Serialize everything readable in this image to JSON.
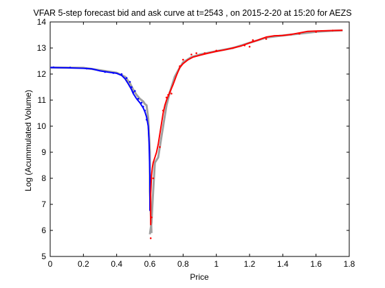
{
  "chart_data": {
    "type": "line",
    "title": "VFAR 5-step forecast bid and ask curve at t=2543 , on 2015-2-20 at 15:20 for AEZS",
    "xlabel": "Price",
    "ylabel": "Log (Acummulated Volume)",
    "xlim": [
      0,
      1.8
    ],
    "ylim": [
      5,
      14
    ],
    "xticks": [
      "0",
      "0.2",
      "0.4",
      "0.6",
      "0.8",
      "1",
      "1.2",
      "1.4",
      "1.6",
      "1.8"
    ],
    "yticks": [
      "5",
      "6",
      "7",
      "8",
      "9",
      "10",
      "11",
      "12",
      "13",
      "14"
    ],
    "grid": false,
    "series": [
      {
        "role": "bid-actual",
        "color": "#a0a0a0",
        "style": "line",
        "x": [
          0.0,
          0.2,
          0.3,
          0.4,
          0.45,
          0.48,
          0.5,
          0.52,
          0.54,
          0.56,
          0.57,
          0.58,
          0.59,
          0.6,
          0.6,
          0.61
        ],
        "y": [
          12.25,
          12.24,
          12.15,
          12.05,
          11.9,
          11.65,
          11.4,
          11.2,
          11.05,
          10.95,
          10.85,
          10.8,
          10.3,
          9.0,
          7.5,
          5.9
        ]
      },
      {
        "role": "bid-forecast",
        "color": "#0000ff",
        "style": "line",
        "x": [
          0.0,
          0.1,
          0.2,
          0.25,
          0.3,
          0.35,
          0.4,
          0.43,
          0.45,
          0.47,
          0.49,
          0.5,
          0.52,
          0.54,
          0.55,
          0.56,
          0.57,
          0.58,
          0.59,
          0.595,
          0.6,
          0.6,
          0.6
        ],
        "y": [
          12.25,
          12.24,
          12.22,
          12.2,
          12.12,
          12.07,
          12.03,
          11.95,
          11.82,
          11.62,
          11.4,
          11.25,
          11.05,
          10.9,
          10.8,
          10.7,
          10.55,
          10.35,
          10.0,
          9.4,
          8.1,
          7.2,
          6.75
        ]
      },
      {
        "role": "ask-actual",
        "color": "#a0a0a0",
        "style": "line",
        "x": [
          0.6,
          0.61,
          0.62,
          0.63,
          0.65,
          0.67,
          0.7,
          0.72,
          0.75,
          0.78,
          0.8,
          0.85,
          0.9,
          1.0,
          1.1,
          1.2,
          1.3,
          1.4,
          1.5,
          1.6,
          1.7,
          1.76
        ],
        "y": [
          5.85,
          6.3,
          7.5,
          8.6,
          8.8,
          9.6,
          10.8,
          11.3,
          11.9,
          12.25,
          12.45,
          12.65,
          12.75,
          12.88,
          13.0,
          13.2,
          13.4,
          13.48,
          13.55,
          13.62,
          13.66,
          13.68
        ]
      },
      {
        "role": "ask-forecast",
        "color": "#ff0000",
        "style": "line",
        "x": [
          0.605,
          0.605,
          0.61,
          0.615,
          0.62,
          0.63,
          0.64,
          0.65,
          0.66,
          0.67,
          0.68,
          0.69,
          0.7,
          0.72,
          0.74,
          0.76,
          0.78,
          0.8,
          0.83,
          0.86,
          0.9,
          0.95,
          1.0,
          1.05,
          1.1,
          1.15,
          1.2,
          1.25,
          1.3,
          1.35,
          1.4,
          1.45,
          1.5,
          1.55,
          1.6,
          1.65,
          1.7,
          1.76
        ],
        "y": [
          6.2,
          7.4,
          8.1,
          8.4,
          8.6,
          8.8,
          9.0,
          9.3,
          9.7,
          10.1,
          10.5,
          10.8,
          11.0,
          11.3,
          11.6,
          11.95,
          12.25,
          12.4,
          12.55,
          12.65,
          12.72,
          12.8,
          12.87,
          12.93,
          13.0,
          13.08,
          13.2,
          13.3,
          13.42,
          13.47,
          13.48,
          13.52,
          13.58,
          13.64,
          13.65,
          13.66,
          13.67,
          13.68
        ]
      },
      {
        "role": "bid-points",
        "color": "#0000ff",
        "style": "dots",
        "x": [
          0.02,
          0.12,
          0.22,
          0.33,
          0.38,
          0.43,
          0.46,
          0.48,
          0.49,
          0.5,
          0.51,
          0.53,
          0.55,
          0.56,
          0.57,
          0.58
        ],
        "y": [
          12.26,
          12.25,
          12.21,
          12.08,
          12.04,
          12.0,
          11.85,
          11.7,
          11.5,
          11.3,
          11.35,
          11.05,
          10.9,
          10.75,
          10.6,
          10.25
        ]
      },
      {
        "role": "ask-points",
        "color": "#ff0000",
        "style": "dots",
        "x": [
          0.605,
          0.61,
          0.62,
          0.66,
          0.68,
          0.7,
          0.71,
          0.72,
          0.73,
          0.78,
          0.8,
          0.85,
          0.88,
          0.93,
          1.0,
          1.1,
          1.17,
          1.2,
          1.22,
          1.3,
          1.45,
          1.5,
          1.6,
          1.7
        ],
        "y": [
          5.7,
          6.5,
          8.0,
          9.2,
          10.6,
          11.1,
          11.2,
          11.3,
          11.25,
          12.3,
          12.55,
          12.75,
          12.8,
          12.8,
          12.9,
          13.0,
          13.1,
          13.05,
          13.3,
          13.35,
          13.52,
          13.55,
          13.62,
          13.67
        ]
      }
    ]
  }
}
